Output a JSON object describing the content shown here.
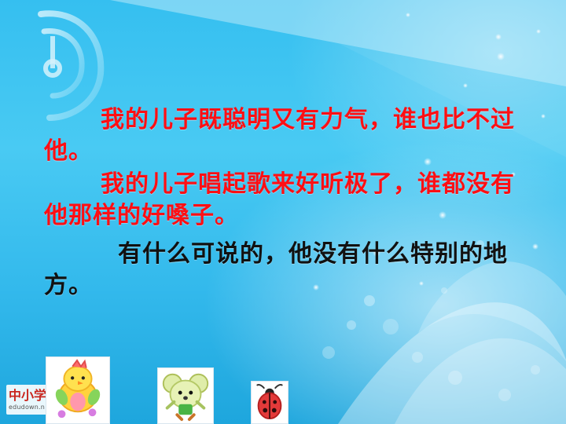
{
  "slide": {
    "paragraph_1": "我的儿子既聪明又有力气，谁也比不过他。",
    "paragraph_2": "我的儿子唱起歌来好听极了，谁都没有他那样的好嗓子。",
    "paragraph_3": "有什么可说的，他没有什么特别的地方。",
    "colors": {
      "background": "#35bff0",
      "highlight_text": "#ff0f14",
      "body_text": "#111111"
    }
  },
  "watermark": {
    "logo_text": "中小学",
    "url": "edudown.n"
  },
  "images": [
    {
      "name": "chick-cartoon"
    },
    {
      "name": "mouse-cartoon"
    },
    {
      "name": "ladybug-cartoon"
    }
  ]
}
